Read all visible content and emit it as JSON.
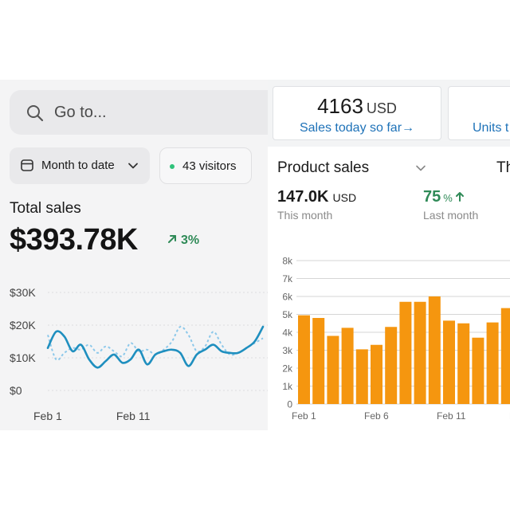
{
  "left": {
    "search": {
      "placeholder": "Go to..."
    },
    "date_range": {
      "label": "Month to date"
    },
    "visitors": {
      "label": "43 visitors",
      "dot_color": "#2fc27a"
    },
    "total_sales": {
      "label": "Total sales",
      "value": "$393.78K",
      "change": "3%"
    }
  },
  "right": {
    "sales_today": {
      "value": "4163",
      "unit": "USD",
      "link": "Sales today so far→"
    },
    "units_card": {
      "link_partial": "Units t"
    },
    "product_sales": {
      "title": "Product sales",
      "next_title_partial": "Th",
      "month_value": "147.0K",
      "month_unit": "USD",
      "month_caption": "This month",
      "pct_value": "75",
      "pct_unit": "%",
      "pct_caption": "Last month"
    }
  },
  "colors": {
    "accent_blue": "#1e72b8",
    "line_current": "#1f8fbf",
    "line_previous": "#8cc8ea",
    "bar": "#f5960f",
    "positive_green": "#2f8a57"
  },
  "chart_data": [
    {
      "type": "line",
      "y_ticks": [
        "$30K",
        "$20K",
        "$10K",
        "$0"
      ],
      "x_tick_labels": [
        "Feb 1",
        "Feb 11"
      ],
      "ylim": [
        0,
        30000
      ],
      "series": [
        {
          "role": "current",
          "values": [
            13000,
            18000,
            16500,
            12000,
            14000,
            9500,
            7000,
            9000,
            11000,
            8500,
            9500,
            12500,
            8000,
            11000,
            12000,
            12500,
            11500,
            7500,
            11000,
            12500,
            14000,
            12000,
            11500,
            11500,
            13000,
            15000,
            19500
          ]
        },
        {
          "role": "previous",
          "values": [
            17000,
            9500,
            11500,
            13000,
            12500,
            14000,
            11500,
            13500,
            12000,
            10500,
            14500,
            12000,
            12500,
            11000,
            12500,
            15000,
            19500,
            17000,
            12000,
            13500,
            18000,
            14000,
            11000,
            11500,
            13000,
            14500,
            16000
          ]
        }
      ]
    },
    {
      "type": "bar",
      "y_ticks": [
        "8k",
        "7k",
        "6k",
        "5k",
        "4k",
        "3k",
        "2k",
        "1k",
        "0"
      ],
      "x_tick_labels": [
        "Feb 1",
        "Feb 6",
        "Feb 11",
        "Feb"
      ],
      "ylim": [
        0,
        8000
      ],
      "values": [
        4950,
        4800,
        3800,
        4250,
        3050,
        3300,
        4300,
        5700,
        5700,
        6000,
        4650,
        4500,
        3700,
        4550,
        5350,
        5250
      ]
    }
  ]
}
